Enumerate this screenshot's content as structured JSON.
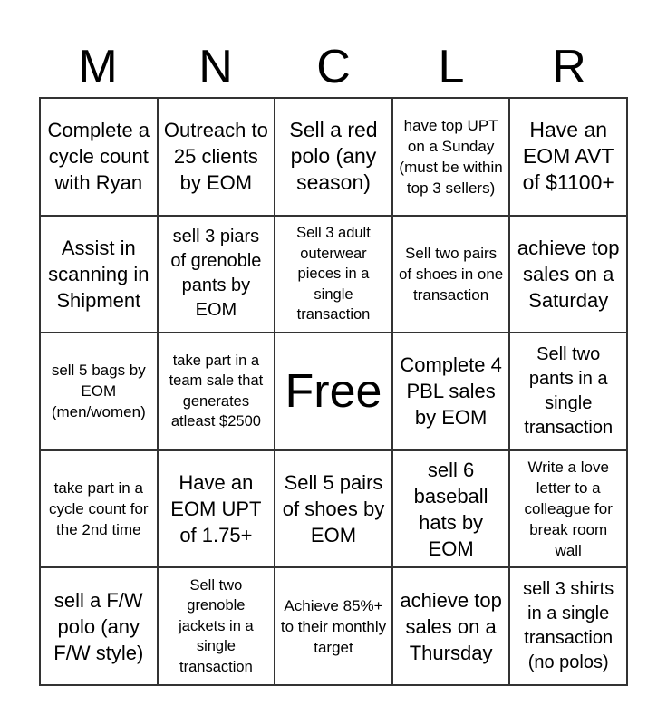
{
  "header": [
    "M",
    "N",
    "C",
    "L",
    "R"
  ],
  "cells": [
    "Complete a cycle count with Ryan",
    "Outreach to 25 clients by EOM",
    "Sell a red polo (any season)",
    "have top UPT on a Sunday (must be within top 3 sellers)",
    "Have an EOM AVT of $1100+",
    "Assist in scanning in Shipment",
    "sell 3 piars of grenoble pants by EOM",
    "Sell 3 adult outerwear pieces in a single transaction",
    "Sell two pairs of shoes in one transaction",
    "achieve top sales on a Saturday",
    "sell 5 bags by EOM (men/women)",
    "take part in a team sale that generates atleast $2500",
    "Free",
    "Complete 4 PBL sales by EOM",
    "Sell two pants in a single transaction",
    "take part in a cycle count for the 2nd time",
    "Have an EOM UPT of 1.75+",
    "Sell 5 pairs of shoes by EOM",
    "sell 6 baseball hats by EOM",
    "Write a love letter to a colleague for break room wall",
    "sell a F/W polo (any F/W style)",
    "Sell two grenoble jackets in a single transaction",
    "Achieve 85%+ to their monthly target",
    "achieve top sales on a Thursday",
    "sell 3 shirts in a single transaction (no polos)"
  ]
}
